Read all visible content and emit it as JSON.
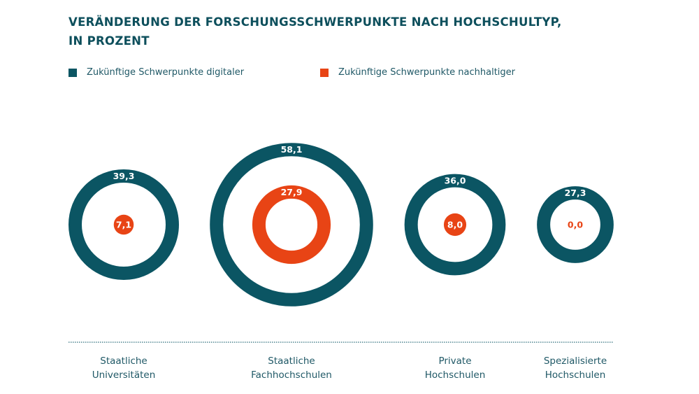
{
  "title": "Veränderung der Forschungsschwerpunkte nach Hochschultyp, in Prozent",
  "title_lines": [
    "VERÄNDERUNG DER FORSCHUNGSSCHWERPUNKTE NACH HOCHSCHULTYP,",
    "IN PROZENT"
  ],
  "colors": {
    "digital": "#0b5563",
    "sustainable": "#e84415",
    "text": "#1f5866",
    "title": "#0d4f5c",
    "baseline": "#2e6f7c"
  },
  "chart_data": {
    "type": "nested-circles",
    "title": "Veränderung der Forschungsschwerpunkte nach Hochschultyp, in Prozent",
    "unit": "%",
    "legend_position": "top-left",
    "categories": [
      "Staatliche Universitäten",
      "Staatliche Fachhochschulen",
      "Private Hochschulen",
      "Spezialisierte Hochschulen"
    ],
    "category_label_lines": [
      [
        "Staatliche",
        "Universitäten"
      ],
      [
        "Staatliche",
        "Fachhochschulen"
      ],
      [
        "Private",
        "Hochschulen"
      ],
      [
        "Spezialisierte",
        "Hochschulen"
      ]
    ],
    "series": [
      {
        "name": "Zukünftige Schwerpunkte digitaler",
        "color": "#0b5563",
        "values": [
          39.3,
          58.1,
          36.0,
          27.3
        ],
        "labels": [
          "39,3",
          "58,1",
          "36,0",
          "27,3"
        ]
      },
      {
        "name": "Zukünftige Schwerpunkte nachhaltiger",
        "color": "#e84415",
        "values": [
          7.1,
          27.9,
          8.0,
          0.0
        ],
        "labels": [
          "7,1",
          "27,9",
          "8,0",
          "0,0"
        ]
      }
    ]
  }
}
